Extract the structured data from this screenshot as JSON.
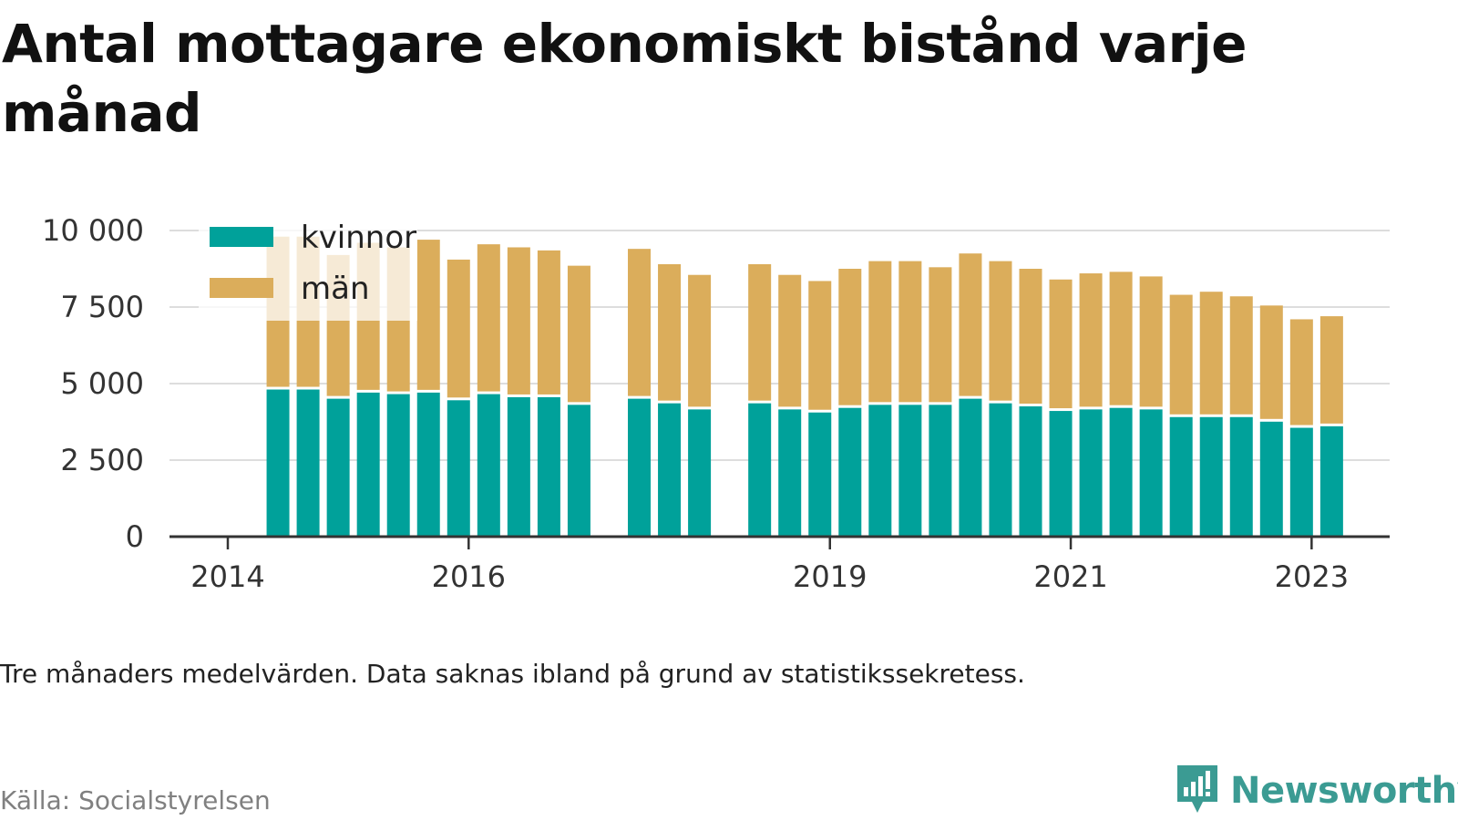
{
  "title": "Antal mottagare ekonomiskt bistånd varje månad",
  "note": "Tre månaders medelvärden. Data saknas ibland på grund av statistikssekretess.",
  "source": "Källa: Socialstyrelsen",
  "brand": "Newsworthy",
  "brand_icon": "newsworthy-logo-icon",
  "colors": {
    "kvinnor": "#00a19a",
    "man": "#dbad5b",
    "grid": "#dddddd",
    "axis": "#333333",
    "brand": "#3b9b93"
  },
  "chart_data": {
    "type": "bar",
    "stacked": true,
    "ylim": [
      0,
      10000
    ],
    "yticks": [
      0,
      2500,
      5000,
      7500,
      10000
    ],
    "ytick_labels": [
      "0",
      "2 500",
      "5 000",
      "7 500",
      "10 000"
    ],
    "xlim": [
      "2014-01",
      "2024-01"
    ],
    "xticks": [
      "2014-01",
      "2016-01",
      "2019-01",
      "2021-01",
      "2023-01"
    ],
    "xtick_labels": [
      "2014",
      "2016",
      "2019",
      "2021",
      "2023"
    ],
    "grid": true,
    "legend_position": "top-left",
    "x": [
      "2014-06",
      "2014-09",
      "2014-12",
      "2015-03",
      "2015-06",
      "2015-09",
      "2015-12",
      "2016-03",
      "2016-06",
      "2016-09",
      "2016-12",
      "2017-06",
      "2017-09",
      "2017-12",
      "2018-06",
      "2018-09",
      "2018-12",
      "2019-03",
      "2019-06",
      "2019-09",
      "2019-12",
      "2020-03",
      "2020-06",
      "2020-09",
      "2020-12",
      "2021-03",
      "2021-06",
      "2021-09",
      "2021-12",
      "2022-03",
      "2022-06",
      "2022-09",
      "2022-12",
      "2023-03"
    ],
    "series": [
      {
        "name": "kvinnor",
        "values": [
          4850,
          4850,
          4550,
          4750,
          4700,
          4750,
          4500,
          4700,
          4600,
          4600,
          4350,
          4550,
          4400,
          4200,
          4400,
          4200,
          4100,
          4250,
          4350,
          4350,
          4350,
          4550,
          4400,
          4300,
          4150,
          4200,
          4250,
          4200,
          3950,
          3950,
          3950,
          3800,
          3600,
          3650
        ]
      },
      {
        "name": "män",
        "values": [
          4950,
          4950,
          4650,
          4850,
          4750,
          4950,
          4550,
          4850,
          4850,
          4750,
          4500,
          4850,
          4500,
          4350,
          4500,
          4350,
          4250,
          4500,
          4650,
          4650,
          4450,
          4700,
          4600,
          4450,
          4250,
          4400,
          4400,
          4300,
          3950,
          4050,
          3900,
          3750,
          3500,
          3550
        ]
      }
    ]
  }
}
